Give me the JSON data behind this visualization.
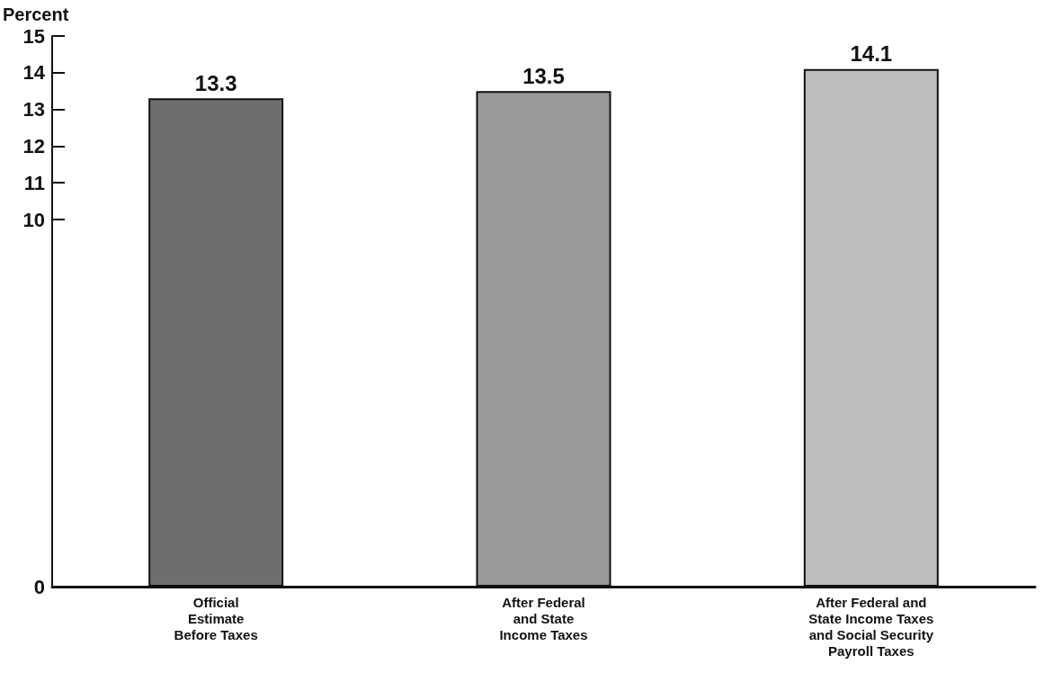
{
  "chart_data": {
    "type": "bar",
    "ylabel": "Percent",
    "categories": [
      "Official\nEstimate\nBefore Taxes",
      "After Federal\nand State\nIncome Taxes",
      "After Federal and\nState Income Taxes\nand Social Security\nPayroll Taxes"
    ],
    "values": [
      13.3,
      13.5,
      14.1
    ],
    "colors": [
      "#6e6e6e",
      "#9a9a9a",
      "#bdbdbd"
    ],
    "ylim": [
      0,
      15
    ],
    "yticks": [
      0,
      10,
      11,
      12,
      13,
      14,
      15
    ],
    "data_labels": true,
    "grid": false
  }
}
